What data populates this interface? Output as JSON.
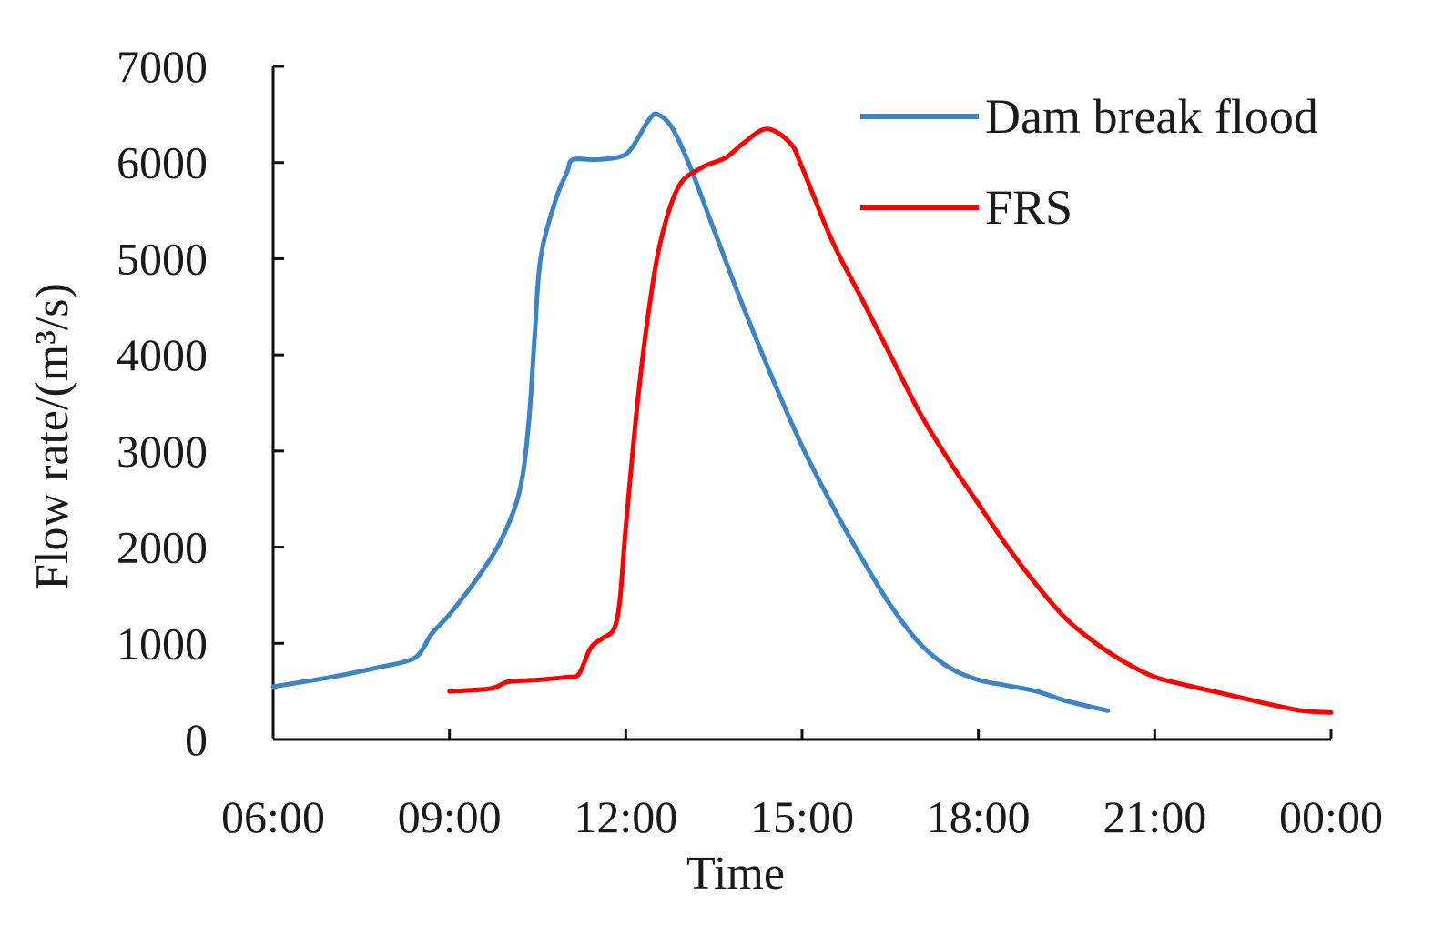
{
  "chart_data": {
    "type": "line",
    "xlabel": "Time",
    "ylabel": "Flow rate/(m³/s)",
    "xlim": [
      6,
      24
    ],
    "ylim": [
      0,
      7000
    ],
    "x_ticks": [
      {
        "value": 6,
        "label": "06:00"
      },
      {
        "value": 9,
        "label": "09:00"
      },
      {
        "value": 12,
        "label": "12:00"
      },
      {
        "value": 15,
        "label": "15:00"
      },
      {
        "value": 18,
        "label": "18:00"
      },
      {
        "value": 21,
        "label": "21:00"
      },
      {
        "value": 24,
        "label": "00:00"
      }
    ],
    "y_ticks": [
      0,
      1000,
      2000,
      3000,
      4000,
      5000,
      6000,
      7000
    ],
    "grid": false,
    "legend": "top-right",
    "series": [
      {
        "name": "Dam break flood",
        "color": "#3d84c6",
        "points": [
          [
            6.0,
            550
          ],
          [
            7.0,
            650
          ],
          [
            7.8,
            750
          ],
          [
            8.3,
            820
          ],
          [
            8.5,
            900
          ],
          [
            8.7,
            1100
          ],
          [
            9.0,
            1300
          ],
          [
            9.5,
            1700
          ],
          [
            9.9,
            2100
          ],
          [
            10.2,
            2600
          ],
          [
            10.35,
            3300
          ],
          [
            10.45,
            4200
          ],
          [
            10.55,
            5000
          ],
          [
            10.8,
            5600
          ],
          [
            11.0,
            5900
          ],
          [
            11.1,
            6030
          ],
          [
            11.5,
            6030
          ],
          [
            11.9,
            6060
          ],
          [
            12.1,
            6150
          ],
          [
            12.4,
            6450
          ],
          [
            12.55,
            6500
          ],
          [
            12.8,
            6350
          ],
          [
            13.1,
            5950
          ],
          [
            13.5,
            5300
          ],
          [
            14.0,
            4500
          ],
          [
            14.5,
            3750
          ],
          [
            15.0,
            3050
          ],
          [
            15.5,
            2450
          ],
          [
            16.0,
            1900
          ],
          [
            16.5,
            1400
          ],
          [
            17.0,
            1000
          ],
          [
            17.5,
            750
          ],
          [
            18.0,
            620
          ],
          [
            18.5,
            560
          ],
          [
            19.0,
            500
          ],
          [
            19.5,
            400
          ],
          [
            20.2,
            300
          ]
        ]
      },
      {
        "name": "FRS",
        "color": "#ff0000",
        "points": [
          [
            9.0,
            500
          ],
          [
            9.7,
            530
          ],
          [
            10.0,
            600
          ],
          [
            10.5,
            620
          ],
          [
            11.0,
            650
          ],
          [
            11.2,
            680
          ],
          [
            11.4,
            950
          ],
          [
            11.6,
            1050
          ],
          [
            11.8,
            1150
          ],
          [
            11.9,
            1450
          ],
          [
            12.0,
            2200
          ],
          [
            12.2,
            3500
          ],
          [
            12.4,
            4500
          ],
          [
            12.6,
            5200
          ],
          [
            12.9,
            5750
          ],
          [
            13.3,
            5950
          ],
          [
            13.7,
            6050
          ],
          [
            14.0,
            6200
          ],
          [
            14.4,
            6350
          ],
          [
            14.8,
            6200
          ],
          [
            15.0,
            5950
          ],
          [
            15.5,
            5200
          ],
          [
            16.0,
            4600
          ],
          [
            16.5,
            4000
          ],
          [
            17.0,
            3400
          ],
          [
            17.5,
            2900
          ],
          [
            18.0,
            2450
          ],
          [
            18.5,
            2000
          ],
          [
            19.0,
            1600
          ],
          [
            19.5,
            1250
          ],
          [
            20.0,
            1000
          ],
          [
            20.5,
            800
          ],
          [
            21.0,
            650
          ],
          [
            21.5,
            570
          ],
          [
            22.0,
            500
          ],
          [
            22.5,
            430
          ],
          [
            23.0,
            360
          ],
          [
            23.5,
            300
          ],
          [
            24.0,
            280
          ]
        ]
      }
    ]
  }
}
